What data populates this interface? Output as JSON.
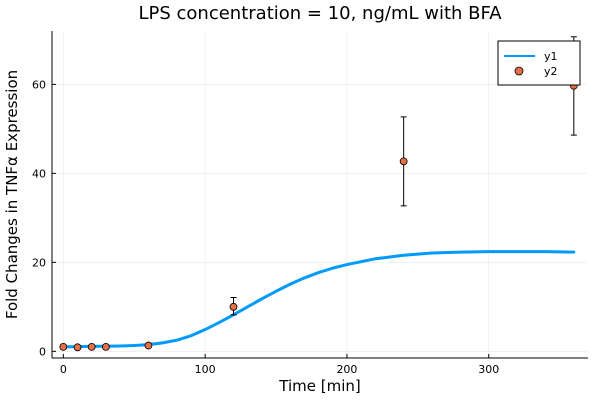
{
  "chart_data": {
    "type": "line",
    "title": "LPS concentration = 10, ng/mL with BFA",
    "xlabel": "Time [min]",
    "ylabel": "Fold Changes in TNFα Expression",
    "xlim": [
      -8,
      370
    ],
    "ylim": [
      -1.5,
      72
    ],
    "x_ticks": [
      0,
      100,
      200,
      300
    ],
    "y_ticks": [
      0,
      20,
      40,
      60
    ],
    "grid": true,
    "legend_position": "top-right",
    "series": [
      {
        "name": "y1",
        "kind": "line",
        "color": "#009AF9",
        "x": [
          0,
          20,
          40,
          50,
          60,
          70,
          80,
          90,
          100,
          110,
          120,
          130,
          140,
          150,
          160,
          170,
          180,
          190,
          200,
          220,
          240,
          260,
          280,
          300,
          320,
          340,
          360
        ],
        "y": [
          1.0,
          1.1,
          1.2,
          1.3,
          1.5,
          1.9,
          2.5,
          3.5,
          4.9,
          6.5,
          8.2,
          10.0,
          11.8,
          13.5,
          15.1,
          16.5,
          17.7,
          18.7,
          19.5,
          20.8,
          21.6,
          22.1,
          22.3,
          22.4,
          22.4,
          22.4,
          22.3
        ]
      },
      {
        "name": "y2",
        "kind": "scatter",
        "color": "#E26F46",
        "x": [
          0,
          10,
          20,
          30,
          60,
          120,
          240,
          360
        ],
        "y": [
          1.0,
          0.9,
          1.0,
          1.0,
          1.3,
          10.0,
          42.7,
          59.7
        ],
        "error_low": [
          0,
          0,
          0,
          0,
          0,
          1.8,
          10.0,
          11.1
        ],
        "error_high": [
          0,
          0,
          0,
          0,
          0,
          2.1,
          10.0,
          11.0
        ]
      }
    ]
  }
}
